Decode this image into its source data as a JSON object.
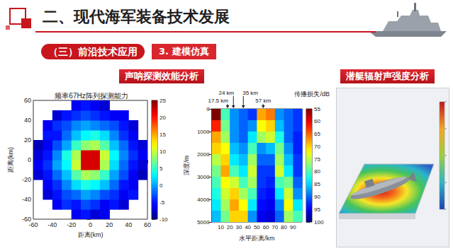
{
  "header": {
    "title": "二、现代海军装备技术发展",
    "section": "（三）前沿技术应用",
    "subsection": "3. 建模仿真"
  },
  "panels": [
    {
      "heading": "声呐探测效能分析"
    },
    {
      "heading": "潜艇辐射声强度分析"
    }
  ],
  "chart_data": [
    {
      "type": "heatmap",
      "title": "频率67Hz阵列探测能力",
      "x_label": "距离(km)",
      "y_label": "距离(km)",
      "xlim": [
        -60,
        60
      ],
      "ylim": [
        -60,
        60
      ],
      "xticks": [
        -60,
        -40,
        -20,
        0,
        20,
        40,
        60
      ],
      "yticks": [
        -60,
        -40,
        -20,
        0,
        20,
        40,
        60
      ],
      "x": [
        -55,
        -45,
        -35,
        -25,
        -15,
        -5,
        5,
        15,
        25,
        35,
        45,
        55
      ],
      "y": [
        -55,
        -45,
        -35,
        -25,
        -15,
        -5,
        5,
        15,
        25,
        35,
        45,
        55
      ],
      "cells": [
        [
          null,
          null,
          null,
          null,
          -6,
          -5,
          -7,
          -6,
          null,
          null,
          null,
          null
        ],
        [
          null,
          null,
          -6,
          -4,
          -5,
          -3,
          -4,
          -6,
          -5,
          -7,
          null,
          null
        ],
        [
          null,
          -7,
          -5,
          -3,
          -2,
          0,
          -1,
          -3,
          -4,
          -6,
          -5,
          null
        ],
        [
          null,
          -6,
          -4,
          -1,
          2,
          4,
          3,
          1,
          -2,
          -5,
          -6,
          null
        ],
        [
          -7,
          -5,
          -2,
          1,
          6,
          9,
          8,
          5,
          0,
          -3,
          -6,
          -8
        ],
        [
          -6,
          -4,
          0,
          3,
          10,
          22,
          22,
          9,
          2,
          -2,
          -5,
          -7
        ],
        [
          -7,
          -5,
          -1,
          4,
          9,
          22,
          22,
          10,
          3,
          -1,
          -4,
          -6
        ],
        [
          -8,
          -6,
          -3,
          0,
          5,
          8,
          9,
          6,
          1,
          -2,
          -5,
          -7
        ],
        [
          null,
          -5,
          -5,
          -2,
          1,
          3,
          4,
          2,
          -1,
          -4,
          -6,
          null
        ],
        [
          null,
          -6,
          -4,
          -3,
          -1,
          0,
          -1,
          -2,
          -3,
          -5,
          -7,
          null
        ],
        [
          null,
          null,
          -7,
          -5,
          -4,
          -3,
          -4,
          -5,
          -6,
          -6,
          null,
          null
        ],
        [
          null,
          null,
          null,
          null,
          -6,
          -5,
          -6,
          -7,
          null,
          null,
          null,
          null
        ]
      ],
      "colorbar": {
        "range": [
          -10,
          25
        ],
        "ticks": [
          -10,
          -5,
          0,
          5,
          10,
          15,
          20,
          25
        ]
      }
    },
    {
      "type": "heatmap",
      "x_label": "水平距离/km",
      "y_label": "深度/m",
      "xlim": [
        0,
        100
      ],
      "ylim": [
        0,
        5000
      ],
      "xticks": [
        10,
        20,
        30,
        40,
        50,
        60,
        70,
        80,
        90
      ],
      "yticks": [
        0,
        1000,
        2000,
        3000,
        4000,
        5000
      ],
      "x": [
        5,
        15,
        25,
        35,
        45,
        55,
        65,
        75,
        85,
        95
      ],
      "y": [
        250,
        750,
        1250,
        1750,
        2250,
        2750,
        3250,
        3750,
        4250,
        4750
      ],
      "cells": [
        [
          55,
          80,
          88,
          90,
          92,
          68,
          66,
          88,
          90,
          92
        ],
        [
          62,
          78,
          88,
          90,
          88,
          72,
          70,
          86,
          90,
          92
        ],
        [
          68,
          76,
          88,
          90,
          84,
          76,
          74,
          82,
          90,
          93
        ],
        [
          70,
          72,
          86,
          88,
          80,
          88,
          86,
          78,
          88,
          93
        ],
        [
          75,
          70,
          84,
          86,
          76,
          90,
          90,
          76,
          86,
          92
        ],
        [
          78,
          68,
          80,
          84,
          74,
          92,
          92,
          74,
          84,
          92
        ],
        [
          80,
          72,
          74,
          80,
          76,
          92,
          93,
          80,
          78,
          90
        ],
        [
          82,
          74,
          70,
          76,
          80,
          93,
          94,
          84,
          74,
          88
        ],
        [
          84,
          76,
          68,
          72,
          84,
          94,
          95,
          88,
          72,
          84
        ],
        [
          86,
          78,
          70,
          70,
          88,
          95,
          96,
          90,
          76,
          80
        ]
      ],
      "colorbar": {
        "title": "传播损失/dB",
        "range": [
          55,
          100
        ],
        "ticks": [
          55,
          60,
          65,
          70,
          75,
          80,
          85,
          90,
          95,
          100
        ]
      },
      "annotations": [
        {
          "text": "17.5 km",
          "x": 17.5
        },
        {
          "text": "24 km",
          "x": 24
        },
        {
          "text": "35 km",
          "x": 35
        },
        {
          "text": "57 km",
          "x": 57
        }
      ]
    }
  ]
}
